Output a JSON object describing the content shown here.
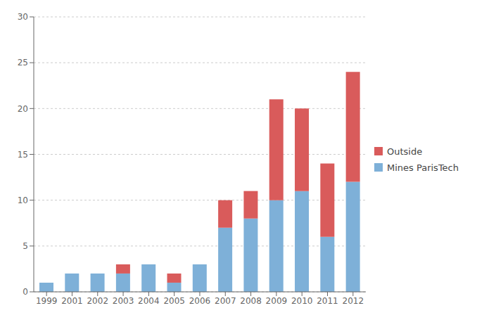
{
  "chart_data": {
    "type": "bar",
    "stacked": true,
    "categories": [
      "1999",
      "2001",
      "2002",
      "2003",
      "2004",
      "2005",
      "2006",
      "2007",
      "2008",
      "2009",
      "2010",
      "2011",
      "2012"
    ],
    "series": [
      {
        "name": "Mines ParisTech",
        "color": "#7EB0D8",
        "values": [
          1,
          2,
          2,
          2,
          3,
          1,
          3,
          7,
          8,
          10,
          11,
          6,
          12
        ]
      },
      {
        "name": "Outside",
        "color": "#D95B5B",
        "values": [
          0,
          0,
          0,
          1,
          0,
          1,
          0,
          3,
          3,
          11,
          9,
          8,
          12
        ]
      }
    ],
    "ylim": [
      0,
      30
    ],
    "yticks": [
      0,
      5,
      10,
      15,
      20,
      25,
      30
    ],
    "grid": true,
    "legend": "right"
  }
}
